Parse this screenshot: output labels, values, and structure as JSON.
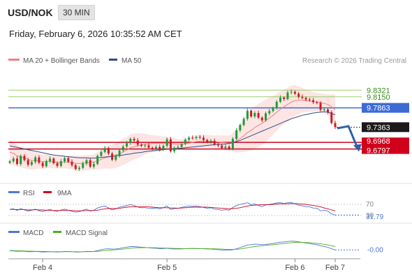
{
  "header": {
    "symbol": "USD/NOK",
    "timeframe": "30 MIN",
    "datetime": "Friday, February 6, 2026 10:35:52 AM CET",
    "credit": "Research © 2026 Trading Central"
  },
  "colors": {
    "ma20": "#f08080",
    "ma50": "#2c4e8a",
    "band_fill": "#fde0de",
    "bull": "#1f9a3a",
    "bear": "#c91d22",
    "resistance_line": "#9acd6a",
    "pivot_line": "#3c6bd6",
    "support_line": "#d0021b",
    "arrow": "#2f5fa8",
    "rsi": "#4f74d3",
    "rsi_ma": "#d0021b",
    "macd": "#4f74d3",
    "macd_signal": "#4caf1e"
  },
  "chart_data": [
    {
      "type": "candlestick",
      "title": "USD/NOK",
      "legend": [
        {
          "name": "MA 20 + Bollinger Bands",
          "color": "#f08080"
        },
        {
          "name": "MA 50",
          "color": "#2c4e8a"
        }
      ],
      "x_ticks": [
        "Feb 4",
        "Feb 5",
        "Feb 6",
        "Feb 7"
      ],
      "y_range": [
        9.605,
        9.885
      ],
      "levels": [
        {
          "value": 9.8321,
          "label": "9.8321",
          "kind": "resistance"
        },
        {
          "value": 9.815,
          "label": "9.8150",
          "kind": "resistance"
        },
        {
          "value": 9.7863,
          "label": "9.7863",
          "kind": "pivot"
        },
        {
          "value": 9.7363,
          "label": "9.7363",
          "kind": "last"
        },
        {
          "value": 9.6968,
          "label": "9.6968",
          "kind": "support"
        },
        {
          "value": 9.6797,
          "label": "9.6797",
          "kind": "support"
        }
      ],
      "close_series": [
        9.648,
        9.655,
        9.641,
        9.662,
        9.651,
        9.639,
        9.646,
        9.658,
        9.644,
        9.635,
        9.648,
        9.655,
        9.643,
        9.636,
        9.648,
        9.656,
        9.647,
        9.638,
        9.628,
        9.631,
        9.642,
        9.651,
        9.634,
        9.641,
        9.662,
        9.672,
        9.682,
        9.668,
        9.652,
        9.661,
        9.676,
        9.686,
        9.695,
        9.706,
        9.702,
        9.691,
        9.688,
        9.689,
        9.683,
        9.681,
        9.685,
        9.678,
        9.688,
        9.705,
        9.674,
        9.683,
        9.685,
        9.693,
        9.704,
        9.709,
        9.708,
        9.711,
        9.709,
        9.703,
        9.698,
        9.701,
        9.692,
        9.689,
        9.682,
        9.686,
        9.681,
        9.706,
        9.728,
        9.742,
        9.758,
        9.779,
        9.764,
        9.773,
        9.761,
        9.754,
        9.772,
        9.778,
        9.786,
        9.802,
        9.813,
        9.809,
        9.826,
        9.828,
        9.823,
        9.815,
        9.812,
        9.808,
        9.806,
        9.801,
        9.799,
        9.781,
        9.782,
        9.775,
        9.747,
        9.7363
      ],
      "ma20_series": [
        9.672,
        9.668,
        9.662,
        9.659,
        9.656,
        9.653,
        9.65,
        9.65,
        9.649,
        9.647,
        9.648,
        9.648,
        9.646,
        9.645,
        9.645,
        9.646,
        9.646,
        9.645,
        9.643,
        9.642,
        9.643,
        9.644,
        9.645,
        9.646,
        9.649,
        9.653,
        9.657,
        9.659,
        9.66,
        9.663,
        9.667,
        9.672,
        9.677,
        9.683,
        9.686,
        9.688,
        9.69,
        9.692,
        9.693,
        9.694,
        9.694,
        9.694,
        9.694,
        9.695,
        9.693,
        9.693,
        9.692,
        9.692,
        9.693,
        9.695,
        9.697,
        9.699,
        9.7,
        9.7,
        9.7,
        9.7,
        9.699,
        9.698,
        9.697,
        9.696,
        9.695,
        9.697,
        9.701,
        9.707,
        9.714,
        9.722,
        9.728,
        9.735,
        9.741,
        9.746,
        9.753,
        9.76,
        9.767,
        9.775,
        9.783,
        9.789,
        9.795,
        9.801,
        9.805,
        9.806,
        9.806,
        9.805,
        9.804,
        9.802,
        9.801,
        9.8,
        9.798,
        9.795,
        9.789,
        9.781
      ],
      "bb_width": [
        0.032,
        0.03,
        0.028,
        0.027,
        0.026,
        0.025,
        0.024,
        0.022,
        0.02,
        0.019,
        0.018,
        0.017,
        0.016,
        0.016,
        0.016,
        0.016,
        0.017,
        0.018,
        0.019,
        0.02,
        0.02,
        0.02,
        0.019,
        0.02,
        0.022,
        0.025,
        0.028,
        0.03,
        0.031,
        0.032,
        0.033,
        0.034,
        0.034,
        0.035,
        0.034,
        0.032,
        0.03,
        0.027,
        0.024,
        0.022,
        0.021,
        0.02,
        0.018,
        0.017,
        0.016,
        0.015,
        0.014,
        0.014,
        0.014,
        0.015,
        0.016,
        0.017,
        0.017,
        0.017,
        0.016,
        0.016,
        0.016,
        0.017,
        0.018,
        0.019,
        0.02,
        0.024,
        0.03,
        0.036,
        0.042,
        0.048,
        0.052,
        0.055,
        0.056,
        0.056,
        0.055,
        0.053,
        0.05,
        0.048,
        0.046,
        0.045,
        0.044,
        0.043,
        0.04,
        0.036,
        0.032,
        0.029,
        0.027,
        0.025,
        0.024,
        0.024,
        0.025,
        0.027,
        0.032,
        0.04
      ],
      "ma50_series": [
        9.688,
        9.686,
        9.684,
        9.682,
        9.68,
        9.678,
        9.676,
        9.674,
        9.672,
        9.67,
        9.668,
        9.666,
        9.664,
        9.663,
        9.662,
        9.661,
        9.66,
        9.659,
        9.658,
        9.657,
        9.657,
        9.657,
        9.656,
        9.656,
        9.657,
        9.658,
        9.659,
        9.66,
        9.661,
        9.662,
        9.663,
        9.664,
        9.666,
        9.667,
        9.669,
        9.67,
        9.671,
        9.673,
        9.674,
        9.675,
        9.676,
        9.677,
        9.678,
        9.679,
        9.68,
        9.681,
        9.681,
        9.682,
        9.683,
        9.684,
        9.685,
        9.686,
        9.687,
        9.688,
        9.689,
        9.69,
        9.691,
        9.692,
        9.692,
        9.693,
        9.694,
        9.696,
        9.699,
        9.702,
        9.706,
        9.71,
        9.714,
        9.718,
        9.722,
        9.726,
        9.73,
        9.734,
        9.738,
        9.742,
        9.746,
        9.75,
        9.754,
        9.758,
        9.761,
        9.764,
        9.767,
        9.769,
        9.771,
        9.773,
        9.774,
        9.775,
        9.776,
        9.775,
        9.772,
        9.768
      ],
      "forecast_arrow": {
        "from": 9.737,
        "to": 9.682
      }
    },
    {
      "type": "line",
      "title": "RSI",
      "legend": [
        {
          "name": "RSI",
          "color": "#4f74d3"
        },
        {
          "name": "9MA",
          "color": "#d0021b"
        }
      ],
      "y_range": [
        20,
        80
      ],
      "reference_levels": [
        70,
        30
      ],
      "reference_labels": [
        "70",
        "30"
      ],
      "last_value_label": "31.79",
      "rsi_values": [
        52,
        54,
        48,
        55,
        50,
        46,
        49,
        53,
        47,
        44,
        49,
        52,
        47,
        45,
        50,
        53,
        49,
        45,
        42,
        44,
        49,
        53,
        46,
        49,
        57,
        61,
        64,
        57,
        50,
        54,
        60,
        63,
        66,
        69,
        66,
        60,
        58,
        58,
        56,
        55,
        57,
        54,
        58,
        64,
        52,
        55,
        56,
        59,
        62,
        64,
        63,
        64,
        62,
        59,
        56,
        58,
        53,
        52,
        49,
        51,
        49,
        59,
        66,
        70,
        73,
        76,
        69,
        72,
        66,
        62,
        68,
        70,
        72,
        75,
        76,
        73,
        76,
        76,
        72,
        67,
        65,
        62,
        61,
        57,
        56,
        47,
        49,
        46,
        36,
        31.79
      ],
      "ma9_values": [
        52,
        52,
        51,
        52,
        51,
        50,
        50,
        51,
        50,
        50,
        49,
        49,
        48,
        48,
        48,
        49,
        49,
        48,
        47,
        47,
        47,
        48,
        48,
        48,
        49,
        52,
        54,
        55,
        55,
        55,
        56,
        58,
        60,
        61,
        61,
        61,
        61,
        61,
        61,
        60,
        59,
        58,
        58,
        58,
        57,
        57,
        56,
        57,
        58,
        59,
        60,
        60,
        60,
        60,
        60,
        59,
        58,
        57,
        56,
        55,
        54,
        55,
        56,
        58,
        61,
        64,
        66,
        67,
        68,
        69,
        69,
        69,
        70,
        71,
        72,
        72,
        72,
        73,
        73,
        72,
        71,
        70,
        68,
        66,
        64,
        61,
        57,
        54,
        50,
        47
      ]
    },
    {
      "type": "line",
      "title": "MACD",
      "legend": [
        {
          "name": "MACD",
          "color": "#4f74d3"
        },
        {
          "name": "MACD Signal",
          "color": "#4caf1e"
        }
      ],
      "last_value_label": "-0.00",
      "macd_values": [
        -0.2,
        -0.3,
        -0.5,
        -0.4,
        -0.5,
        -0.7,
        -0.7,
        -0.6,
        -0.7,
        -0.9,
        -0.8,
        -0.7,
        -0.8,
        -0.9,
        -0.8,
        -0.6,
        -0.6,
        -0.7,
        -0.9,
        -0.9,
        -0.7,
        -0.5,
        -0.6,
        -0.5,
        -0.1,
        0.4,
        0.9,
        1.0,
        0.8,
        0.9,
        1.2,
        1.6,
        1.9,
        2.3,
        2.3,
        2.1,
        1.9,
        1.8,
        1.6,
        1.4,
        1.3,
        1.1,
        1.1,
        1.3,
        1.0,
        0.9,
        0.9,
        0.9,
        1.1,
        1.2,
        1.2,
        1.2,
        1.1,
        1.0,
        0.9,
        0.8,
        0.6,
        0.5,
        0.3,
        0.3,
        0.1,
        0.4,
        1.0,
        1.7,
        2.4,
        3.2,
        3.4,
        3.7,
        3.6,
        3.4,
        3.6,
        3.8,
        4.1,
        4.5,
        4.9,
        5.0,
        5.3,
        5.5,
        5.4,
        5.1,
        4.8,
        4.4,
        4.1,
        3.7,
        3.4,
        2.8,
        2.4,
        1.9,
        1.0,
        0.3
      ],
      "signal_values": [
        0.0,
        -0.1,
        -0.2,
        -0.2,
        -0.3,
        -0.4,
        -0.4,
        -0.5,
        -0.5,
        -0.6,
        -0.6,
        -0.7,
        -0.7,
        -0.7,
        -0.7,
        -0.7,
        -0.7,
        -0.7,
        -0.7,
        -0.8,
        -0.7,
        -0.7,
        -0.7,
        -0.6,
        -0.5,
        -0.3,
        -0.1,
        0.1,
        0.3,
        0.4,
        0.6,
        0.8,
        1.0,
        1.3,
        1.5,
        1.6,
        1.6,
        1.7,
        1.7,
        1.6,
        1.6,
        1.5,
        1.4,
        1.4,
        1.3,
        1.2,
        1.2,
        1.1,
        1.1,
        1.1,
        1.1,
        1.1,
        1.1,
        1.1,
        1.1,
        1.0,
        1.0,
        0.9,
        0.8,
        0.7,
        0.6,
        0.6,
        0.7,
        0.9,
        1.2,
        1.6,
        2.0,
        2.3,
        2.6,
        2.8,
        3.0,
        3.2,
        3.4,
        3.6,
        3.9,
        4.1,
        4.3,
        4.6,
        4.7,
        4.8,
        4.8,
        4.7,
        4.6,
        4.4,
        4.2,
        3.9,
        3.6,
        3.3,
        2.8,
        2.3
      ]
    }
  ]
}
